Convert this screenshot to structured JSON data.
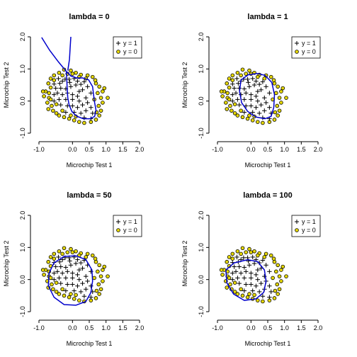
{
  "chart_data": [
    {
      "type": "scatter",
      "title": "lambda = 0",
      "xlabel": "Microchip Test 1",
      "ylabel": "Microchip Test 2",
      "xlim": [
        -1.0,
        2.0
      ],
      "ylim": [
        -1.0,
        2.0
      ],
      "xticks": [
        "-1.0",
        "0.0",
        "0.5",
        "1.0",
        "1.5",
        "2.0"
      ],
      "yticks": [
        "-1.0",
        "0.0",
        "1.0",
        "2.0"
      ],
      "legend": {
        "position": "top-right",
        "entries": [
          "y = 1",
          "y = 0"
        ]
      },
      "boundary_color": "#0000cc",
      "boundary": [
        [
          -0.18,
          0.92
        ],
        [
          -0.05,
          0.78
        ],
        [
          0.12,
          0.72
        ],
        [
          0.3,
          0.72
        ],
        [
          0.48,
          0.66
        ],
        [
          0.6,
          0.45
        ],
        [
          0.63,
          0.18
        ],
        [
          0.66,
          -0.05
        ],
        [
          0.7,
          -0.28
        ],
        [
          0.66,
          -0.48
        ],
        [
          0.52,
          -0.55
        ],
        [
          0.32,
          -0.55
        ],
        [
          0.12,
          -0.47
        ],
        [
          -0.02,
          -0.32
        ],
        [
          -0.1,
          -0.12
        ],
        [
          -0.14,
          0.1
        ],
        [
          -0.16,
          0.4
        ],
        [
          -0.17,
          0.68
        ],
        [
          -0.18,
          0.92
        ]
      ],
      "boundary_extra": [
        [
          [
            -0.18,
            0.92
          ],
          [
            -0.42,
            1.22
          ],
          [
            -0.68,
            1.58
          ],
          [
            -0.92,
            1.98
          ]
        ],
        [
          [
            -0.14,
            0.95
          ],
          [
            -0.09,
            1.3
          ],
          [
            -0.07,
            1.65
          ],
          [
            -0.05,
            2.0
          ]
        ]
      ]
    },
    {
      "type": "scatter",
      "title": "lambda = 1",
      "xlabel": "Microchip Test 1",
      "ylabel": "Microchip Test 2",
      "xlim": [
        -1.0,
        2.0
      ],
      "ylim": [
        -1.0,
        2.0
      ],
      "xticks": [
        "-1.0",
        "0.0",
        "0.5",
        "1.0",
        "1.5",
        "2.0"
      ],
      "yticks": [
        "-1.0",
        "0.0",
        "1.0",
        "2.0"
      ],
      "legend": {
        "position": "top-right",
        "entries": [
          "y = 1",
          "y = 0"
        ]
      },
      "boundary_color": "#0000cc",
      "boundary": [
        [
          -0.3,
          0.65
        ],
        [
          -0.08,
          0.82
        ],
        [
          0.18,
          0.86
        ],
        [
          0.42,
          0.8
        ],
        [
          0.62,
          0.58
        ],
        [
          0.7,
          0.2
        ],
        [
          0.68,
          -0.2
        ],
        [
          0.6,
          -0.48
        ],
        [
          0.42,
          -0.55
        ],
        [
          0.15,
          -0.5
        ],
        [
          -0.1,
          -0.32
        ],
        [
          -0.28,
          -0.05
        ],
        [
          -0.34,
          0.3
        ],
        [
          -0.3,
          0.65
        ]
      ],
      "boundary_extra": []
    },
    {
      "type": "scatter",
      "title": "lambda = 50",
      "xlabel": "Microchip Test 1",
      "ylabel": "Microchip Test 2",
      "xlim": [
        -1.0,
        2.0
      ],
      "ylim": [
        -1.0,
        2.0
      ],
      "xticks": [
        "-1.0",
        "0.0",
        "0.5",
        "1.0",
        "1.5",
        "2.0"
      ],
      "yticks": [
        "-1.0",
        "0.0",
        "1.0",
        "2.0"
      ],
      "legend": {
        "position": "top-right",
        "entries": [
          "y = 1",
          "y = 0"
        ]
      },
      "boundary_color": "#0000cc",
      "boundary": [
        [
          -0.7,
          0.2
        ],
        [
          -0.55,
          0.52
        ],
        [
          -0.25,
          0.72
        ],
        [
          0.1,
          0.74
        ],
        [
          0.4,
          0.62
        ],
        [
          0.58,
          0.3
        ],
        [
          0.6,
          -0.05
        ],
        [
          0.55,
          -0.4
        ],
        [
          0.4,
          -0.68
        ],
        [
          0.1,
          -0.8
        ],
        [
          -0.25,
          -0.78
        ],
        [
          -0.55,
          -0.55
        ],
        [
          -0.72,
          -0.2
        ],
        [
          -0.7,
          0.2
        ]
      ],
      "boundary_extra": []
    },
    {
      "type": "scatter",
      "title": "lambda = 100",
      "xlabel": "Microchip Test 1",
      "ylabel": "Microchip Test 2",
      "xlim": [
        -1.0,
        2.0
      ],
      "ylim": [
        -1.0,
        2.0
      ],
      "xticks": [
        "-1.0",
        "0.0",
        "0.5",
        "1.0",
        "1.5",
        "2.0"
      ],
      "yticks": [
        "-1.0",
        "0.0",
        "1.0",
        "2.0"
      ],
      "legend": {
        "position": "top-right",
        "entries": [
          "y = 1",
          "y = 0"
        ]
      },
      "boundary_color": "#0000cc",
      "boundary": [
        [
          -0.75,
          0.3
        ],
        [
          -0.5,
          0.52
        ],
        [
          -0.1,
          0.62
        ],
        [
          0.2,
          0.56
        ],
        [
          0.4,
          0.3
        ],
        [
          0.45,
          -0.05
        ],
        [
          0.38,
          -0.4
        ],
        [
          0.15,
          -0.6
        ],
        [
          -0.2,
          -0.65
        ],
        [
          -0.52,
          -0.45
        ],
        [
          -0.72,
          -0.1
        ],
        [
          -0.75,
          0.3
        ]
      ],
      "boundary_extra": [
        [
          [
            1.7,
            1.85
          ],
          [
            1.8,
            1.92
          ],
          [
            1.9,
            1.98
          ]
        ]
      ]
    }
  ],
  "points": {
    "positive": [
      [
        0.05,
        0.7
      ],
      [
        -0.1,
        0.68
      ],
      [
        -0.22,
        0.68
      ],
      [
        -0.42,
        0.7
      ],
      [
        -0.38,
        0.55
      ],
      [
        -0.55,
        0.53
      ],
      [
        -0.5,
        0.4
      ],
      [
        -0.35,
        0.4
      ],
      [
        -0.2,
        0.38
      ],
      [
        -0.05,
        0.45
      ],
      [
        0.1,
        0.5
      ],
      [
        0.25,
        0.52
      ],
      [
        0.35,
        0.6
      ],
      [
        0.15,
        0.62
      ],
      [
        -0.45,
        0.25
      ],
      [
        -0.55,
        0.2
      ],
      [
        -0.3,
        0.2
      ],
      [
        -0.15,
        0.25
      ],
      [
        0.0,
        0.2
      ],
      [
        0.15,
        0.15
      ],
      [
        0.3,
        0.35
      ],
      [
        0.45,
        0.45
      ],
      [
        -0.4,
        0.05
      ],
      [
        -0.55,
        0.0
      ],
      [
        -0.2,
        0.05
      ],
      [
        0.0,
        0.05
      ],
      [
        0.2,
        0.0
      ],
      [
        0.4,
        0.1
      ],
      [
        0.55,
        0.25
      ],
      [
        -0.35,
        -0.12
      ],
      [
        -0.15,
        -0.15
      ],
      [
        0.0,
        -0.15
      ],
      [
        0.15,
        -0.2
      ],
      [
        0.3,
        -0.12
      ],
      [
        0.45,
        -0.05
      ],
      [
        -0.2,
        -0.35
      ],
      [
        0.05,
        -0.35
      ],
      [
        0.25,
        -0.38
      ],
      [
        0.4,
        -0.3
      ],
      [
        0.55,
        -0.2
      ],
      [
        0.6,
        -0.38
      ],
      [
        0.55,
        -0.55
      ],
      [
        0.35,
        -0.52
      ],
      [
        0.2,
        0.3
      ],
      [
        -0.08,
        0.58
      ],
      [
        -0.3,
        0.62
      ]
    ],
    "negative": [
      [
        -0.25,
        0.98
      ],
      [
        -0.05,
        0.95
      ],
      [
        0.1,
        0.88
      ],
      [
        0.25,
        0.82
      ],
      [
        0.45,
        0.8
      ],
      [
        0.6,
        0.75
      ],
      [
        -0.4,
        0.88
      ],
      [
        -0.55,
        0.8
      ],
      [
        -0.65,
        0.7
      ],
      [
        -0.55,
        0.65
      ],
      [
        -0.72,
        0.55
      ],
      [
        -0.65,
        0.42
      ],
      [
        -0.8,
        0.3
      ],
      [
        -0.7,
        0.25
      ],
      [
        -0.88,
        0.3
      ],
      [
        -0.7,
        0.1
      ],
      [
        -0.75,
        -0.05
      ],
      [
        -0.62,
        -0.15
      ],
      [
        -0.72,
        -0.25
      ],
      [
        -0.58,
        -0.3
      ],
      [
        -0.48,
        -0.38
      ],
      [
        -0.4,
        -0.45
      ],
      [
        -0.25,
        -0.5
      ],
      [
        -0.1,
        -0.55
      ],
      [
        0.05,
        -0.6
      ],
      [
        0.2,
        -0.65
      ],
      [
        0.35,
        -0.68
      ],
      [
        0.55,
        -0.65
      ],
      [
        0.7,
        -0.58
      ],
      [
        0.8,
        -0.45
      ],
      [
        0.85,
        -0.3
      ],
      [
        0.78,
        -0.15
      ],
      [
        0.9,
        -0.05
      ],
      [
        0.85,
        0.1
      ],
      [
        0.75,
        0.25
      ],
      [
        0.9,
        0.3
      ],
      [
        0.8,
        0.45
      ],
      [
        0.7,
        0.55
      ],
      [
        0.95,
        0.4
      ],
      [
        1.05,
        0.1
      ],
      [
        0.68,
        0.65
      ],
      [
        -0.48,
        -0.1
      ],
      [
        -0.3,
        -0.3
      ],
      [
        -0.05,
        -0.45
      ],
      [
        0.1,
        -0.48
      ],
      [
        -0.65,
        0.05
      ],
      [
        -0.85,
        0.15
      ],
      [
        0.0,
        0.85
      ],
      [
        0.2,
        0.75
      ],
      [
        -0.15,
        0.85
      ],
      [
        -0.3,
        0.8
      ],
      [
        0.4,
        0.7
      ],
      [
        0.65,
        0.05
      ],
      [
        0.72,
        -0.35
      ]
    ]
  }
}
